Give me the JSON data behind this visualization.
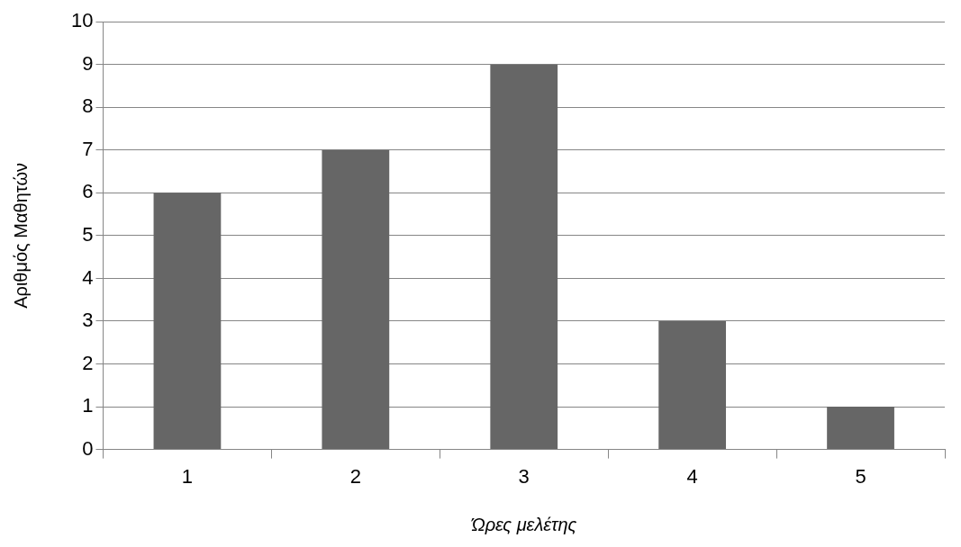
{
  "chart_data": {
    "type": "bar",
    "xlabel": "Ώρες μελέτης",
    "ylabel": "Αριθμός Μαθητών",
    "categories": [
      "1",
      "2",
      "3",
      "4",
      "5"
    ],
    "values": [
      6,
      7,
      9,
      3,
      1
    ],
    "color": "#666666",
    "ylim": [
      0,
      10
    ],
    "yticks": [
      0,
      1,
      2,
      3,
      4,
      5,
      6,
      7,
      8,
      9,
      10
    ],
    "grid": "y",
    "legend": false
  }
}
